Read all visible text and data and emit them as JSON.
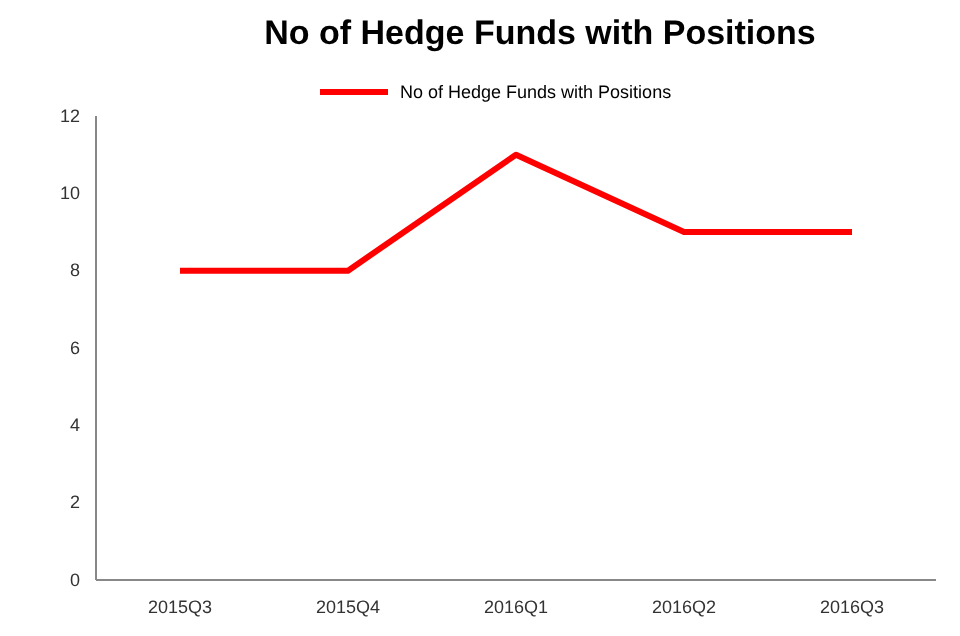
{
  "chart_data": {
    "type": "line",
    "title": "No of Hedge Funds with Positions",
    "categories": [
      "2015Q3",
      "2015Q4",
      "2016Q1",
      "2016Q2",
      "2016Q3"
    ],
    "series": [
      {
        "name": "No of Hedge Funds with Positions",
        "color": "#ff0000",
        "values": [
          8,
          8,
          11,
          9,
          9
        ]
      }
    ],
    "ylim": [
      0,
      12
    ],
    "yticks": [
      0,
      2,
      4,
      6,
      8,
      10,
      12
    ],
    "legend": "top",
    "grid": false,
    "marker": "none",
    "line_style": "solid"
  }
}
